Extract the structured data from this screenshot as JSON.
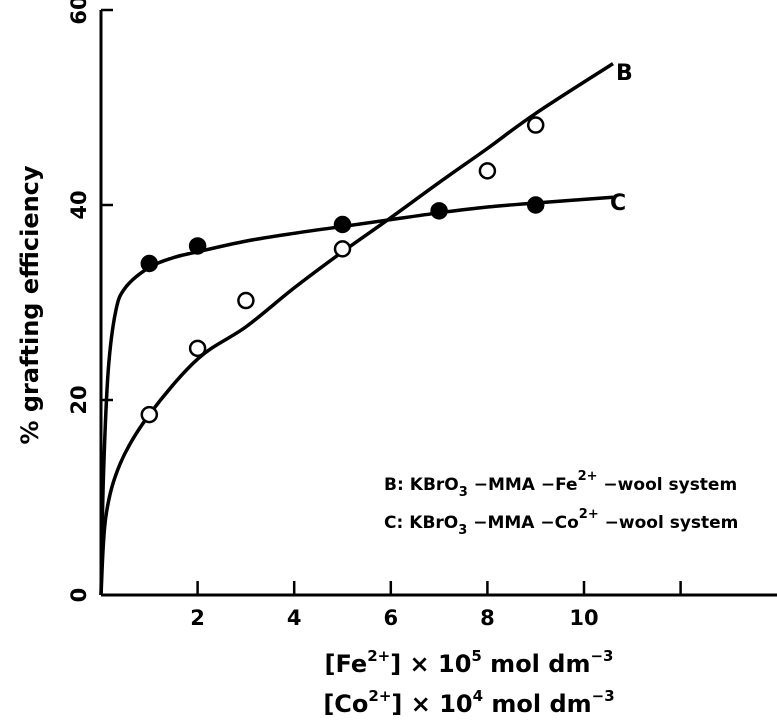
{
  "chart_data": {
    "type": "scatter",
    "title": "",
    "ylabel": "% grafting efficiency",
    "xlabel": {
      "line1": {
        "prefix": "[Fe",
        "sup": "2+",
        "mid": "] × 10",
        "exp": "5",
        "unit": " mol dm",
        "unit_exp": "−3"
      },
      "line2": {
        "prefix": "[Co",
        "sup": "2+",
        "mid": "] × 10",
        "exp": "4",
        "unit": " mol dm",
        "unit_exp": "−3"
      }
    },
    "xlim": [
      0,
      14
    ],
    "ylim": [
      0,
      60
    ],
    "x_ticks": [
      2,
      4,
      6,
      8,
      10
    ],
    "x_tick_labels": [
      "2",
      "4",
      "6",
      "8",
      "10"
    ],
    "x_minor_ticks": [
      12
    ],
    "y_ticks": [
      0,
      20,
      40,
      60
    ],
    "y_tick_labels": [
      "0",
      "20",
      "40",
      "60"
    ],
    "grid": false,
    "legend_position": "lower-right",
    "series": [
      {
        "name": "B",
        "marker": "open-circle",
        "points": [
          [
            1,
            18.5
          ],
          [
            2,
            25.3
          ],
          [
            3,
            30.2
          ],
          [
            5,
            35.5
          ],
          [
            8,
            43.5
          ],
          [
            9,
            48.2
          ]
        ],
        "curve": [
          [
            0,
            0
          ],
          [
            0.1,
            8
          ],
          [
            0.4,
            13.5
          ],
          [
            1,
            18.5
          ],
          [
            2,
            24.2
          ],
          [
            3,
            27.5
          ],
          [
            4,
            31.5
          ],
          [
            5,
            35.2
          ],
          [
            6,
            38.7
          ],
          [
            7,
            42.3
          ],
          [
            8,
            45.8
          ],
          [
            9,
            49.4
          ],
          [
            10.6,
            54.5
          ]
        ],
        "legend_text": {
          "letter": "B:",
          "formula": "KBrO",
          "sub": "3",
          "rest": " −MMA −Fe",
          "sup": "2+",
          "tail": " −wool system"
        }
      },
      {
        "name": "C",
        "marker": "filled-circle",
        "points": [
          [
            1,
            34
          ],
          [
            2,
            35.8
          ],
          [
            5,
            38
          ],
          [
            7,
            39.4
          ],
          [
            9,
            40
          ]
        ],
        "curve": [
          [
            0,
            0
          ],
          [
            0.05,
            12
          ],
          [
            0.15,
            23
          ],
          [
            0.3,
            29
          ],
          [
            0.5,
            31.5
          ],
          [
            1,
            33.6
          ],
          [
            1.5,
            34.6
          ],
          [
            2,
            35.2
          ],
          [
            3,
            36.3
          ],
          [
            4,
            37.1
          ],
          [
            5,
            37.8
          ],
          [
            6,
            38.5
          ],
          [
            7,
            39.2
          ],
          [
            8,
            39.8
          ],
          [
            9,
            40.2
          ],
          [
            10.6,
            40.8
          ]
        ],
        "legend_text": {
          "letter": "C:",
          "formula": "KBrO",
          "sub": "3",
          "rest": " −MMA −Co",
          "sup": "2+",
          "tail": " −wool system"
        }
      }
    ]
  }
}
